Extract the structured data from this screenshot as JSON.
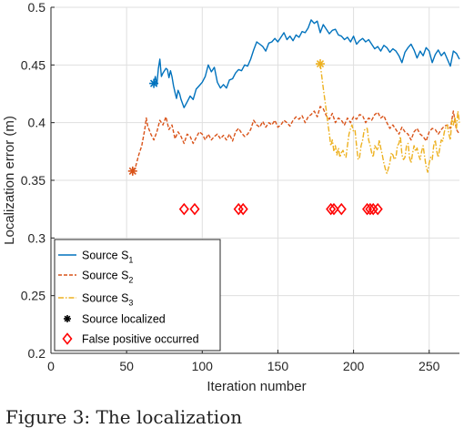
{
  "chart_data": {
    "type": "line",
    "xlabel": "Iteration number",
    "ylabel": "Localization error (m)",
    "xlim": [
      0,
      270
    ],
    "ylim": [
      0.2,
      0.5
    ],
    "xticks": [
      0,
      50,
      100,
      150,
      200,
      250
    ],
    "yticks": [
      0.2,
      0.25,
      0.3,
      0.35,
      0.4,
      0.45,
      0.5
    ],
    "legend_position": "bottom-left",
    "grid": true,
    "series": [
      {
        "name": "Source S",
        "subscript": "1",
        "color": "#0072BD",
        "dash": "solid",
        "x": [
          68,
          69,
          70,
          71,
          72,
          73,
          74,
          75,
          76,
          77,
          78,
          79,
          80,
          81,
          82,
          83,
          84,
          85,
          86,
          88,
          90,
          92,
          94,
          96,
          98,
          100,
          102,
          104,
          106,
          108,
          110,
          112,
          114,
          116,
          118,
          120,
          122,
          124,
          126,
          128,
          130,
          132,
          134,
          136,
          138,
          140,
          142,
          144,
          146,
          148,
          150,
          152,
          154,
          156,
          158,
          160,
          162,
          164,
          166,
          168,
          170,
          172,
          174,
          176,
          178,
          180,
          182,
          184,
          186,
          188,
          190,
          192,
          194,
          196,
          198,
          200,
          202,
          204,
          206,
          208,
          210,
          212,
          214,
          216,
          218,
          220,
          222,
          224,
          226,
          228,
          230,
          232,
          234,
          236,
          238,
          240,
          242,
          244,
          246,
          248,
          250,
          252,
          254,
          256,
          258,
          260,
          262,
          264,
          266,
          268,
          270
        ],
        "y": [
          0.434,
          0.44,
          0.433,
          0.447,
          0.455,
          0.44,
          0.443,
          0.445,
          0.447,
          0.446,
          0.439,
          0.445,
          0.44,
          0.432,
          0.426,
          0.421,
          0.428,
          0.425,
          0.42,
          0.413,
          0.418,
          0.423,
          0.42,
          0.429,
          0.432,
          0.435,
          0.44,
          0.45,
          0.444,
          0.448,
          0.435,
          0.43,
          0.433,
          0.43,
          0.437,
          0.438,
          0.443,
          0.446,
          0.445,
          0.45,
          0.449,
          0.455,
          0.463,
          0.47,
          0.468,
          0.466,
          0.462,
          0.469,
          0.47,
          0.473,
          0.47,
          0.474,
          0.478,
          0.472,
          0.475,
          0.471,
          0.476,
          0.474,
          0.479,
          0.478,
          0.482,
          0.489,
          0.486,
          0.488,
          0.478,
          0.485,
          0.481,
          0.477,
          0.48,
          0.481,
          0.476,
          0.475,
          0.472,
          0.474,
          0.47,
          0.475,
          0.468,
          0.471,
          0.473,
          0.47,
          0.472,
          0.468,
          0.464,
          0.466,
          0.462,
          0.467,
          0.465,
          0.461,
          0.464,
          0.462,
          0.458,
          0.452,
          0.461,
          0.465,
          0.468,
          0.463,
          0.456,
          0.462,
          0.458,
          0.465,
          0.462,
          0.452,
          0.459,
          0.463,
          0.458,
          0.461,
          0.455,
          0.449,
          0.462,
          0.46,
          0.455
        ]
      },
      {
        "name": "Source S",
        "subscript": "2",
        "color": "#D95319",
        "dash": "dashed",
        "x": [
          54,
          56,
          58,
          60,
          62,
          63,
          64,
          66,
          68,
          70,
          72,
          74,
          76,
          78,
          80,
          82,
          84,
          86,
          88,
          90,
          92,
          94,
          96,
          98,
          100,
          102,
          104,
          106,
          108,
          110,
          112,
          114,
          116,
          118,
          120,
          122,
          124,
          126,
          128,
          130,
          132,
          134,
          136,
          138,
          140,
          142,
          144,
          146,
          148,
          150,
          152,
          154,
          156,
          158,
          160,
          162,
          164,
          166,
          168,
          170,
          172,
          174,
          176,
          178,
          180,
          182,
          184,
          186,
          188,
          190,
          192,
          194,
          196,
          198,
          200,
          202,
          204,
          206,
          208,
          210,
          212,
          214,
          216,
          218,
          220,
          222,
          224,
          226,
          228,
          230,
          232,
          234,
          236,
          238,
          240,
          242,
          244,
          246,
          248,
          250,
          252,
          254,
          256,
          258,
          260,
          262,
          264,
          266,
          268,
          270
        ],
        "y": [
          0.358,
          0.362,
          0.372,
          0.38,
          0.394,
          0.404,
          0.397,
          0.39,
          0.385,
          0.392,
          0.402,
          0.398,
          0.405,
          0.394,
          0.398,
          0.386,
          0.392,
          0.388,
          0.382,
          0.39,
          0.388,
          0.382,
          0.387,
          0.392,
          0.39,
          0.385,
          0.39,
          0.385,
          0.388,
          0.39,
          0.386,
          0.389,
          0.385,
          0.39,
          0.384,
          0.392,
          0.395,
          0.391,
          0.388,
          0.39,
          0.394,
          0.402,
          0.398,
          0.396,
          0.401,
          0.396,
          0.4,
          0.398,
          0.402,
          0.396,
          0.398,
          0.402,
          0.4,
          0.397,
          0.402,
          0.405,
          0.403,
          0.406,
          0.4,
          0.405,
          0.407,
          0.41,
          0.405,
          0.414,
          0.412,
          0.406,
          0.403,
          0.408,
          0.4,
          0.404,
          0.402,
          0.398,
          0.404,
          0.4,
          0.405,
          0.403,
          0.407,
          0.406,
          0.4,
          0.404,
          0.402,
          0.407,
          0.409,
          0.404,
          0.406,
          0.4,
          0.395,
          0.398,
          0.394,
          0.39,
          0.396,
          0.392,
          0.39,
          0.385,
          0.392,
          0.395,
          0.39,
          0.388,
          0.384,
          0.392,
          0.395,
          0.394,
          0.39,
          0.394,
          0.397,
          0.398,
          0.395,
          0.41,
          0.394,
          0.39
        ]
      },
      {
        "name": "Source S",
        "subscript": "3",
        "color": "#EDB120",
        "dash": "dashdot",
        "x": [
          178,
          179,
          180,
          181,
          182,
          183,
          184,
          185,
          186,
          187,
          188,
          189,
          190,
          191,
          192,
          193,
          194,
          195,
          196,
          197,
          198,
          199,
          200,
          201,
          202,
          203,
          204,
          205,
          206,
          207,
          208,
          209,
          210,
          211,
          212,
          213,
          214,
          215,
          216,
          217,
          218,
          219,
          220,
          221,
          222,
          223,
          224,
          225,
          226,
          227,
          228,
          229,
          230,
          231,
          232,
          233,
          234,
          235,
          236,
          237,
          238,
          239,
          240,
          241,
          242,
          243,
          244,
          245,
          246,
          247,
          248,
          249,
          250,
          251,
          252,
          253,
          254,
          255,
          256,
          257,
          258,
          259,
          260,
          261,
          262,
          263,
          264,
          265,
          266,
          267,
          268,
          269,
          270
        ],
        "y": [
          0.451,
          0.44,
          0.43,
          0.42,
          0.41,
          0.4,
          0.39,
          0.38,
          0.385,
          0.375,
          0.38,
          0.372,
          0.378,
          0.37,
          0.374,
          0.376,
          0.372,
          0.37,
          0.38,
          0.39,
          0.395,
          0.398,
          0.392,
          0.393,
          0.38,
          0.368,
          0.37,
          0.38,
          0.385,
          0.393,
          0.395,
          0.395,
          0.385,
          0.38,
          0.374,
          0.37,
          0.38,
          0.378,
          0.376,
          0.385,
          0.378,
          0.372,
          0.365,
          0.36,
          0.356,
          0.36,
          0.365,
          0.374,
          0.372,
          0.368,
          0.37,
          0.38,
          0.382,
          0.388,
          0.372,
          0.368,
          0.37,
          0.38,
          0.382,
          0.37,
          0.365,
          0.373,
          0.38,
          0.375,
          0.378,
          0.372,
          0.368,
          0.375,
          0.38,
          0.37,
          0.362,
          0.357,
          0.365,
          0.37,
          0.368,
          0.38,
          0.385,
          0.375,
          0.37,
          0.378,
          0.385,
          0.384,
          0.392,
          0.396,
          0.398,
          0.39,
          0.385,
          0.403,
          0.398,
          0.405,
          0.395,
          0.41,
          0.4
        ]
      }
    ],
    "localized_markers": [
      {
        "x": 68,
        "y": 0.434,
        "color": "#0072BD"
      },
      {
        "x": 54,
        "y": 0.358,
        "color": "#D95319"
      },
      {
        "x": 178,
        "y": 0.451,
        "color": "#EDB120"
      }
    ],
    "false_positive_markers": {
      "color": "#FF0000",
      "y": 0.325,
      "x": [
        88,
        95,
        124,
        127,
        185,
        187,
        192,
        209,
        211,
        213,
        216
      ]
    },
    "legend": [
      {
        "label": "Source S",
        "sub": "1",
        "kind": "line-solid",
        "color": "#0072BD"
      },
      {
        "label": "Source S",
        "sub": "2",
        "kind": "line-dashed",
        "color": "#D95319"
      },
      {
        "label": "Source S",
        "sub": "3",
        "kind": "line-dashdot",
        "color": "#EDB120"
      },
      {
        "label": "Source localized",
        "sub": "",
        "kind": "star",
        "color": "#000000"
      },
      {
        "label": "False positive occurred",
        "sub": "",
        "kind": "diamond",
        "color": "#FF0000"
      }
    ]
  },
  "caption": "Figure 3: The localization"
}
